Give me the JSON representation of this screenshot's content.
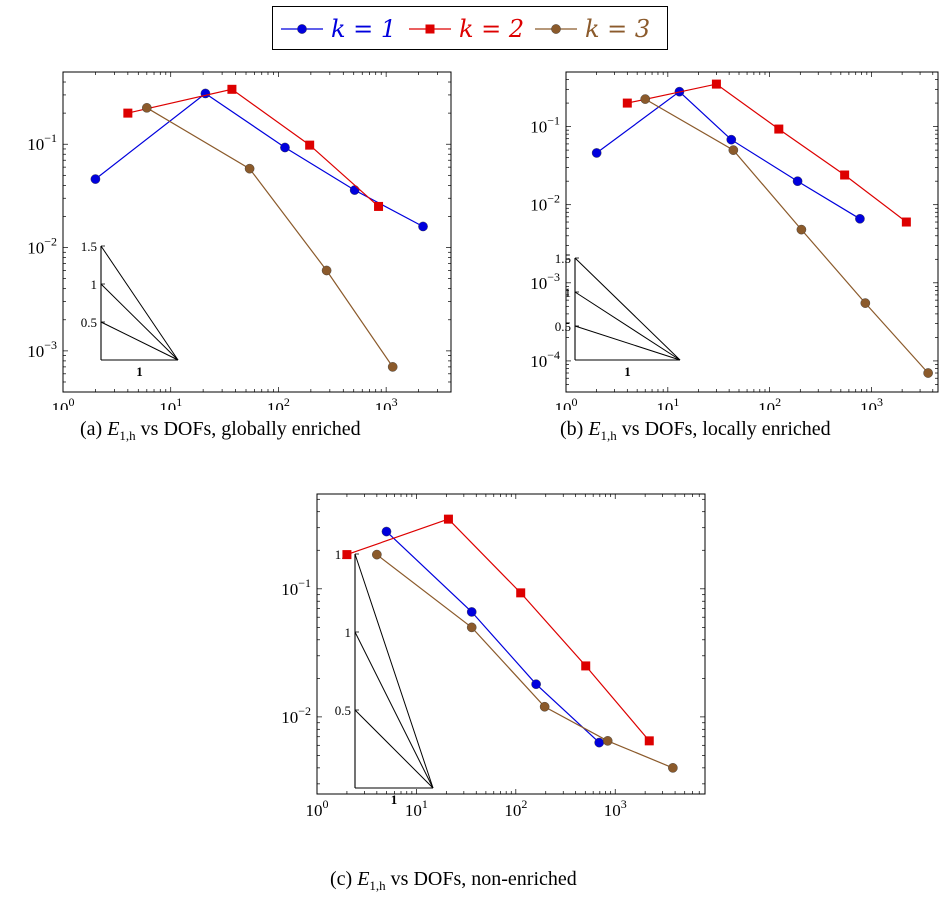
{
  "legend": [
    {
      "label": "k = 1",
      "color": "#0000dd",
      "marker": "circle"
    },
    {
      "label": "k = 2",
      "color": "#dd0000",
      "marker": "square"
    },
    {
      "label": "k = 3",
      "color": "#8b5a2b",
      "marker": "circle"
    }
  ],
  "slope_triangle": {
    "ticks": [
      "0.5",
      "1",
      "1.5"
    ],
    "base_label": "1"
  },
  "captions": {
    "a": {
      "prefix": "(a) ",
      "sym": "E",
      "sub": "1,h",
      "suffix": " vs DOFs, globally enriched"
    },
    "b": {
      "prefix": "(b) ",
      "sym": "E",
      "sub": "1,h",
      "suffix": " vs DOFs, locally enriched"
    },
    "c": {
      "prefix": "(c) ",
      "sym": "E",
      "sub": "1,h",
      "suffix": " vs DOFs, non-enriched"
    }
  },
  "chart_data": [
    {
      "type": "line",
      "xscale": "log",
      "yscale": "log",
      "xlim": [
        1,
        4000
      ],
      "ylim": [
        0.0004,
        0.5
      ],
      "xticks": [
        1,
        10,
        100,
        1000
      ],
      "yticks": [
        0.001,
        0.01,
        0.1
      ],
      "series": [
        {
          "name": "k = 1",
          "x": [
            2,
            21,
            115,
            510,
            2200
          ],
          "y": [
            0.046,
            0.31,
            0.093,
            0.036,
            0.016
          ]
        },
        {
          "name": "k = 2",
          "x": [
            4,
            37,
            195,
            850
          ],
          "y": [
            0.2,
            0.34,
            0.098,
            0.025
          ]
        },
        {
          "name": "k = 3",
          "x": [
            6,
            54,
            280,
            1150
          ],
          "y": [
            0.225,
            0.058,
            0.006,
            0.0007
          ]
        }
      ]
    },
    {
      "type": "line",
      "xscale": "log",
      "yscale": "log",
      "xlim": [
        1,
        4500
      ],
      "ylim": [
        4e-05,
        0.5
      ],
      "xticks": [
        1,
        10,
        100,
        1000
      ],
      "yticks": [
        0.0001,
        0.001,
        0.01,
        0.1
      ],
      "series": [
        {
          "name": "k = 1",
          "x": [
            2,
            13,
            42,
            188,
            770
          ],
          "y": [
            0.046,
            0.28,
            0.068,
            0.02,
            0.0066
          ]
        },
        {
          "name": "k = 2",
          "x": [
            4,
            30,
            123,
            545,
            2200
          ],
          "y": [
            0.2,
            0.35,
            0.093,
            0.024,
            0.006
          ]
        },
        {
          "name": "k = 3",
          "x": [
            6,
            44,
            205,
            870,
            3600
          ],
          "y": [
            0.225,
            0.05,
            0.0048,
            0.00055,
            7e-05
          ]
        }
      ]
    },
    {
      "type": "line",
      "xscale": "log",
      "yscale": "log",
      "xlim": [
        1,
        8000
      ],
      "ylim": [
        0.0025,
        0.55
      ],
      "xticks": [
        1,
        10,
        100,
        1000
      ],
      "yticks": [
        0.01,
        0.1
      ],
      "series": [
        {
          "name": "k = 1",
          "x": [
            5,
            36,
            160,
            690
          ],
          "y": [
            0.28,
            0.066,
            0.018,
            0.0063
          ]
        },
        {
          "name": "k = 2",
          "x": [
            2,
            21,
            112,
            505,
            2200
          ],
          "y": [
            0.185,
            0.35,
            0.093,
            0.025,
            0.0065
          ]
        },
        {
          "name": "k = 3",
          "x": [
            4,
            36,
            195,
            840,
            3800
          ],
          "y": [
            0.185,
            0.05,
            0.012,
            0.0065,
            0.004
          ]
        }
      ]
    }
  ]
}
